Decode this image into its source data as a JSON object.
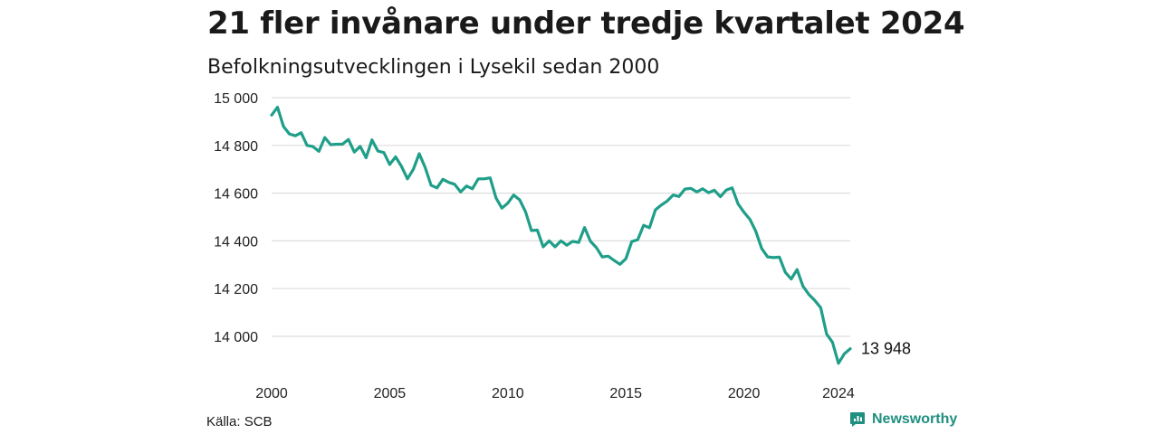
{
  "title": "21 fler invånare under tredje kvartalet 2024",
  "subtitle": "Befolkningsutvecklingen i Lysekil sedan 2000",
  "source": "Källa: SCB",
  "brand": "Newsworthy",
  "colors": {
    "line": "#1f9e89",
    "grid": "#dddddd",
    "brand": "#1f8f80"
  },
  "chart_data": {
    "type": "line",
    "title": "21 fler invånare under tredje kvartalet 2024",
    "xlabel": "",
    "ylabel": "",
    "ylim": [
      13880,
      15000
    ],
    "y_ticks": [
      15000,
      14800,
      14600,
      14400,
      14200,
      14000
    ],
    "y_tick_labels": [
      "15 000",
      "14 800",
      "14 600",
      "14 400",
      "14 200",
      "14 000"
    ],
    "x_ticks": [
      2000,
      2005,
      2010,
      2015,
      2020,
      2024
    ],
    "x_tick_labels": [
      "2000",
      "2005",
      "2010",
      "2015",
      "2020",
      "2024"
    ],
    "grid": true,
    "end_label": "13 948",
    "series": [
      {
        "values": [
          [
            2000.0,
            14927
          ],
          [
            2000.25,
            14960
          ],
          [
            2000.5,
            14880
          ],
          [
            2000.75,
            14848
          ],
          [
            2001.0,
            14840
          ],
          [
            2001.25,
            14853
          ],
          [
            2001.5,
            14800
          ],
          [
            2001.75,
            14795
          ],
          [
            2002.0,
            14775
          ],
          [
            2002.25,
            14833
          ],
          [
            2002.5,
            14803
          ],
          [
            2002.75,
            14805
          ],
          [
            2003.0,
            14805
          ],
          [
            2003.25,
            14825
          ],
          [
            2003.5,
            14772
          ],
          [
            2003.75,
            14796
          ],
          [
            2004.0,
            14748
          ],
          [
            2004.25,
            14823
          ],
          [
            2004.5,
            14776
          ],
          [
            2004.75,
            14770
          ],
          [
            2005.0,
            14720
          ],
          [
            2005.25,
            14752
          ],
          [
            2005.5,
            14712
          ],
          [
            2005.75,
            14660
          ],
          [
            2006.0,
            14700
          ],
          [
            2006.25,
            14765
          ],
          [
            2006.5,
            14708
          ],
          [
            2006.75,
            14633
          ],
          [
            2007.0,
            14622
          ],
          [
            2007.25,
            14658
          ],
          [
            2007.5,
            14645
          ],
          [
            2007.75,
            14637
          ],
          [
            2008.0,
            14605
          ],
          [
            2008.25,
            14630
          ],
          [
            2008.5,
            14618
          ],
          [
            2008.75,
            14660
          ],
          [
            2009.0,
            14660
          ],
          [
            2009.25,
            14664
          ],
          [
            2009.5,
            14580
          ],
          [
            2009.75,
            14537
          ],
          [
            2010.0,
            14558
          ],
          [
            2010.25,
            14592
          ],
          [
            2010.5,
            14572
          ],
          [
            2010.75,
            14522
          ],
          [
            2011.0,
            14443
          ],
          [
            2011.25,
            14445
          ],
          [
            2011.5,
            14375
          ],
          [
            2011.75,
            14400
          ],
          [
            2012.0,
            14375
          ],
          [
            2012.25,
            14400
          ],
          [
            2012.5,
            14382
          ],
          [
            2012.75,
            14398
          ],
          [
            2013.0,
            14393
          ],
          [
            2013.25,
            14456
          ],
          [
            2013.5,
            14398
          ],
          [
            2013.75,
            14372
          ],
          [
            2014.0,
            14333
          ],
          [
            2014.25,
            14336
          ],
          [
            2014.5,
            14318
          ],
          [
            2014.75,
            14302
          ],
          [
            2015.0,
            14325
          ],
          [
            2015.25,
            14397
          ],
          [
            2015.5,
            14405
          ],
          [
            2015.75,
            14465
          ],
          [
            2016.0,
            14455
          ],
          [
            2016.25,
            14530
          ],
          [
            2016.5,
            14550
          ],
          [
            2016.75,
            14567
          ],
          [
            2017.0,
            14592
          ],
          [
            2017.25,
            14586
          ],
          [
            2017.5,
            14617
          ],
          [
            2017.75,
            14620
          ],
          [
            2018.0,
            14605
          ],
          [
            2018.25,
            14618
          ],
          [
            2018.5,
            14602
          ],
          [
            2018.75,
            14612
          ],
          [
            2019.0,
            14585
          ],
          [
            2019.25,
            14613
          ],
          [
            2019.5,
            14622
          ],
          [
            2019.75,
            14555
          ],
          [
            2020.0,
            14520
          ],
          [
            2020.25,
            14490
          ],
          [
            2020.5,
            14440
          ],
          [
            2020.75,
            14368
          ],
          [
            2021.0,
            14333
          ],
          [
            2021.25,
            14330
          ],
          [
            2021.5,
            14332
          ],
          [
            2021.75,
            14268
          ],
          [
            2022.0,
            14240
          ],
          [
            2022.25,
            14280
          ],
          [
            2022.5,
            14210
          ],
          [
            2022.75,
            14175
          ],
          [
            2023.0,
            14150
          ],
          [
            2023.25,
            14120
          ],
          [
            2023.5,
            14010
          ],
          [
            2023.75,
            13975
          ],
          [
            2024.0,
            13887
          ],
          [
            2024.25,
            13927
          ],
          [
            2024.5,
            13948
          ]
        ]
      }
    ]
  }
}
